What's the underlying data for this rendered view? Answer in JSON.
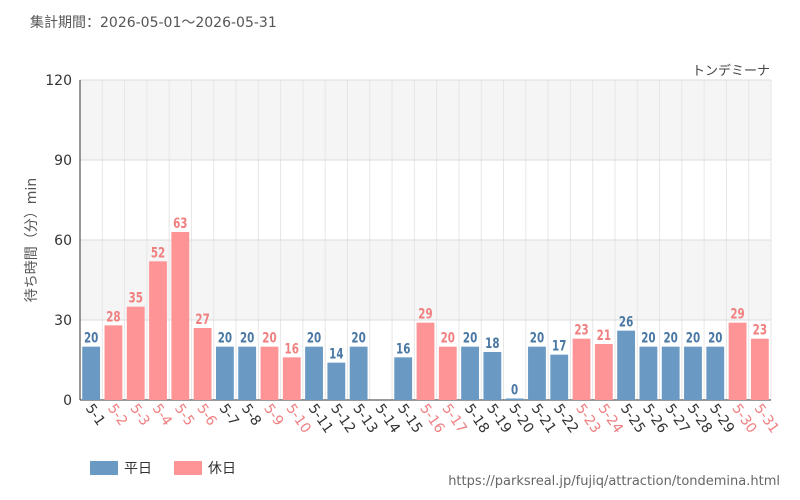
{
  "header": {
    "period": "集計期間：2026-05-01～2026-05-31"
  },
  "footer": {
    "url": "https://parksreal.jp/fujiq/attraction/tondemina.html"
  },
  "chart_data": {
    "type": "bar",
    "subtitle": "トンデミーナ",
    "ylabel": "待ち時間（分）min",
    "xlabel": "",
    "ylim": [
      0,
      120
    ],
    "yticks": [
      0,
      30,
      60,
      90,
      120
    ],
    "categories": [
      "5-1",
      "5-2",
      "5-3",
      "5-4",
      "5-5",
      "5-6",
      "5-7",
      "5-8",
      "5-9",
      "5-10",
      "5-11",
      "5-12",
      "5-13",
      "5-14",
      "5-15",
      "5-16",
      "5-17",
      "5-18",
      "5-19",
      "5-20",
      "5-21",
      "5-22",
      "5-23",
      "5-24",
      "5-25",
      "5-26",
      "5-27",
      "5-28",
      "5-29",
      "5-30",
      "5-31"
    ],
    "values": [
      20,
      28,
      35,
      52,
      63,
      27,
      20,
      20,
      20,
      16,
      20,
      14,
      20,
      null,
      16,
      29,
      20,
      20,
      18,
      0,
      20,
      17,
      23,
      21,
      26,
      20,
      20,
      20,
      20,
      29,
      23
    ],
    "day_type": [
      "weekday",
      "holiday",
      "holiday",
      "holiday",
      "holiday",
      "holiday",
      "weekday",
      "weekday",
      "holiday",
      "holiday",
      "weekday",
      "weekday",
      "weekday",
      "weekday",
      "weekday",
      "holiday",
      "holiday",
      "weekday",
      "weekday",
      "weekday",
      "weekday",
      "weekday",
      "holiday",
      "holiday",
      "weekday",
      "weekday",
      "weekday",
      "weekday",
      "weekday",
      "holiday",
      "holiday"
    ],
    "legend": [
      {
        "key": "weekday",
        "label": "平日",
        "color": "#6a9ac4"
      },
      {
        "key": "holiday",
        "label": "休日",
        "color": "#ff9496"
      }
    ],
    "label_colors": {
      "weekday": "#4a78a4",
      "holiday": "#f07f80",
      "axis": "#333333"
    },
    "grid": true,
    "legend_position": "bottom-left"
  }
}
